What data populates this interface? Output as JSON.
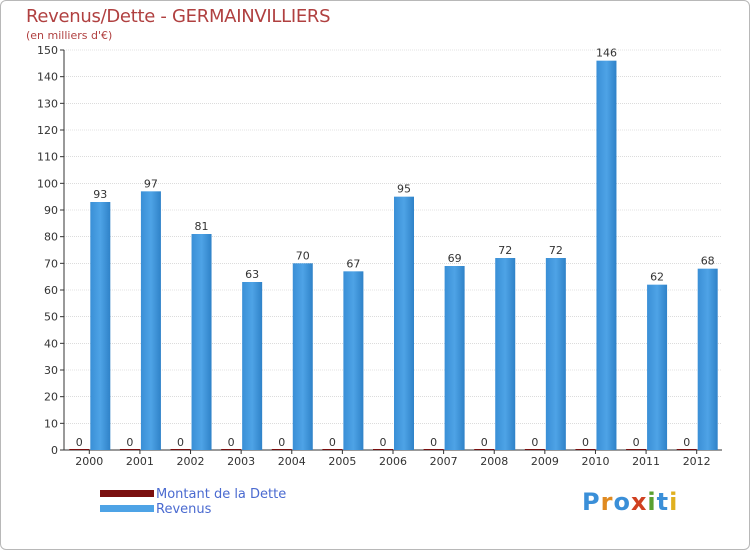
{
  "title": "Revenus/Dette - GERMAINVILLIERS",
  "subtitle": "(en milliers d'€)",
  "colors": {
    "revenus": "#4ea3e6",
    "dette": "#7a0f0f",
    "axis": "#333333",
    "grid": "#c8c8c8",
    "title": "#b04040",
    "legend_text": "#4a6ad0"
  },
  "legend": {
    "dette_label": "Montant de la Dette",
    "revenus_label": "Revenus"
  },
  "logo": {
    "text": "Proxiti",
    "letters": [
      "P",
      "r",
      "o",
      "x",
      "i",
      "t",
      "i"
    ],
    "letter_colors": [
      "#3a8fd8",
      "#e08a20",
      "#3a8fd8",
      "#d04020",
      "#5aa030",
      "#3a8fd8",
      "#e0b020"
    ]
  },
  "chart_data": {
    "type": "bar",
    "title": "Revenus/Dette - GERMAINVILLIERS",
    "ylabel": "(en milliers d'€)",
    "xlabel": "",
    "ylim": [
      0,
      150
    ],
    "yticks": [
      0,
      10,
      20,
      30,
      40,
      50,
      60,
      70,
      80,
      90,
      100,
      110,
      120,
      130,
      140,
      150
    ],
    "categories": [
      "2000",
      "2001",
      "2002",
      "2003",
      "2004",
      "2005",
      "2006",
      "2007",
      "2008",
      "2009",
      "2010",
      "2011",
      "2012"
    ],
    "series": [
      {
        "name": "Montant de la Dette",
        "values": [
          0,
          0,
          0,
          0,
          0,
          0,
          0,
          0,
          0,
          0,
          0,
          0,
          0
        ]
      },
      {
        "name": "Revenus",
        "values": [
          93,
          97,
          81,
          63,
          70,
          67,
          95,
          69,
          72,
          72,
          146,
          62,
          68
        ]
      }
    ],
    "grid": true,
    "legend_position": "bottom-left"
  }
}
